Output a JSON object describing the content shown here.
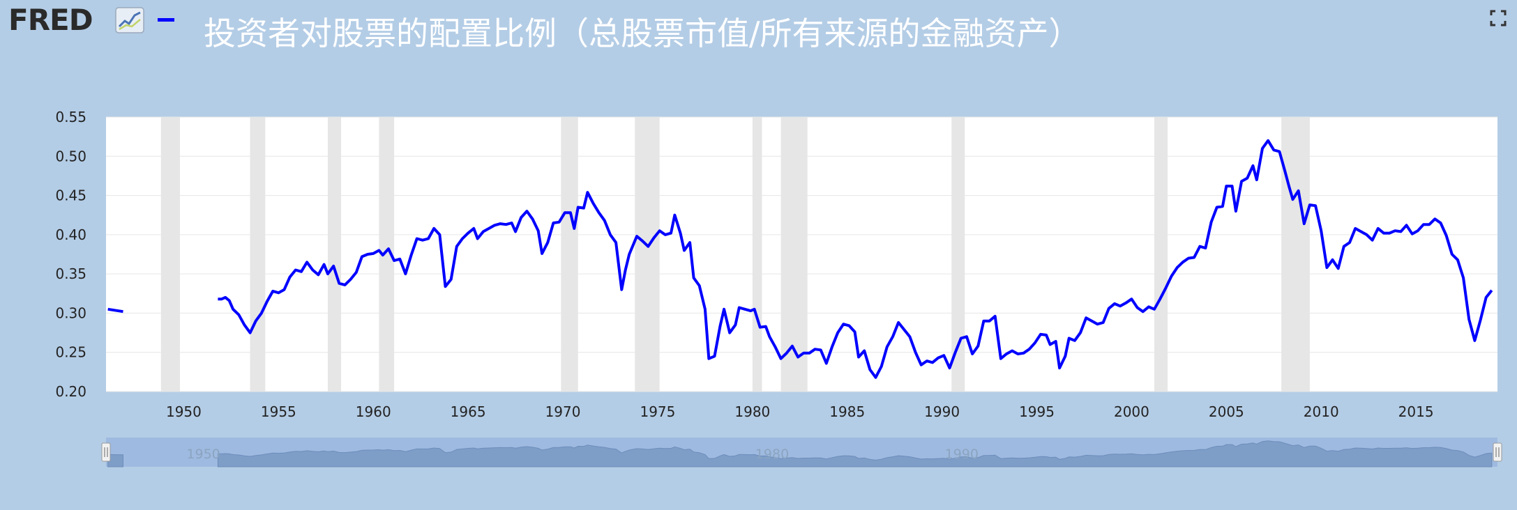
{
  "header": {
    "logo_text": "FRED",
    "logo_icon": "line-chart-icon",
    "series_color": "#0000ff",
    "title": "投资者对股票的配置比例（总股票市值/所有来源的金融资产）",
    "fullscreen_icon": "fullscreen-icon"
  },
  "colors": {
    "background": "#b4cde6",
    "plot_background": "#ffffff",
    "line": "#0000ff",
    "recession": "#e6e6e6",
    "navigator_fill": "#7e9ec8",
    "navigator_window": "#9fbae0"
  },
  "chart_data": {
    "type": "line",
    "title": "投资者对股票的配置比例（总股票市值/所有来源的金融资产）",
    "xlabel": "",
    "ylabel": "",
    "xlim": [
      1945.9,
      2019.3
    ],
    "ylim": [
      0.2,
      0.55
    ],
    "y_ticks": [
      0.2,
      0.25,
      0.3,
      0.35,
      0.4,
      0.45,
      0.5,
      0.55
    ],
    "y_tick_labels": [
      "0.20",
      "0.25",
      "0.30",
      "0.35",
      "0.40",
      "0.45",
      "0.50",
      "0.55"
    ],
    "x_ticks": [
      1950,
      1955,
      1960,
      1965,
      1970,
      1975,
      1980,
      1985,
      1990,
      1995,
      2000,
      2005,
      2010,
      2015
    ],
    "x_tick_labels": [
      "1950",
      "1955",
      "1960",
      "1965",
      "1970",
      "1975",
      "1980",
      "1985",
      "1990",
      "1995",
      "2000",
      "2005",
      "2010",
      "2015"
    ],
    "grid": true,
    "legend": "none",
    "recessions": [
      [
        1948.8,
        1949.8
      ],
      [
        1953.5,
        1954.3
      ],
      [
        1957.6,
        1958.3
      ],
      [
        1960.3,
        1961.1
      ],
      [
        1969.9,
        1970.8
      ],
      [
        1973.8,
        1975.1
      ],
      [
        1980.0,
        1980.5
      ],
      [
        1981.5,
        1982.9
      ],
      [
        1990.5,
        1991.2
      ],
      [
        2001.2,
        2001.9
      ],
      [
        2007.9,
        2009.4
      ]
    ],
    "series": [
      {
        "values": [
          [
            [
              1946.0,
              0.305
            ],
            [
              1946.8,
              0.302
            ]
          ],
          [
            [
              1951.8,
              0.318
            ],
            [
              1952.0,
              0.318
            ],
            [
              1952.2,
              0.32
            ],
            [
              1952.4,
              0.316
            ],
            [
              1952.6,
              0.305
            ],
            [
              1952.9,
              0.298
            ],
            [
              1953.2,
              0.285
            ],
            [
              1953.5,
              0.275
            ],
            [
              1953.8,
              0.29
            ],
            [
              1954.1,
              0.3
            ],
            [
              1954.4,
              0.315
            ],
            [
              1954.7,
              0.328
            ],
            [
              1955.0,
              0.326
            ],
            [
              1955.3,
              0.33
            ],
            [
              1955.6,
              0.346
            ],
            [
              1955.9,
              0.355
            ],
            [
              1956.2,
              0.353
            ],
            [
              1956.5,
              0.365
            ],
            [
              1956.8,
              0.355
            ],
            [
              1957.1,
              0.349
            ],
            [
              1957.4,
              0.362
            ],
            [
              1957.6,
              0.35
            ],
            [
              1957.9,
              0.36
            ],
            [
              1958.2,
              0.338
            ],
            [
              1958.5,
              0.336
            ],
            [
              1958.8,
              0.343
            ],
            [
              1959.1,
              0.352
            ],
            [
              1959.4,
              0.372
            ],
            [
              1959.7,
              0.375
            ],
            [
              1960.0,
              0.376
            ],
            [
              1960.3,
              0.38
            ],
            [
              1960.5,
              0.374
            ],
            [
              1960.8,
              0.382
            ],
            [
              1961.1,
              0.367
            ],
            [
              1961.4,
              0.369
            ],
            [
              1961.7,
              0.35
            ],
            [
              1962.0,
              0.374
            ],
            [
              1962.3,
              0.395
            ],
            [
              1962.6,
              0.393
            ],
            [
              1962.9,
              0.395
            ],
            [
              1963.2,
              0.408
            ],
            [
              1963.5,
              0.4
            ],
            [
              1963.8,
              0.334
            ],
            [
              1964.1,
              0.343
            ],
            [
              1964.4,
              0.385
            ],
            [
              1964.7,
              0.395
            ],
            [
              1965.0,
              0.402
            ],
            [
              1965.3,
              0.408
            ],
            [
              1965.5,
              0.395
            ],
            [
              1965.8,
              0.404
            ],
            [
              1966.1,
              0.408
            ],
            [
              1966.4,
              0.412
            ],
            [
              1966.7,
              0.414
            ],
            [
              1967.0,
              0.413
            ],
            [
              1967.3,
              0.415
            ],
            [
              1967.5,
              0.404
            ],
            [
              1967.8,
              0.422
            ],
            [
              1968.1,
              0.43
            ],
            [
              1968.4,
              0.42
            ],
            [
              1968.7,
              0.405
            ],
            [
              1968.9,
              0.376
            ],
            [
              1969.2,
              0.39
            ],
            [
              1969.5,
              0.415
            ],
            [
              1969.8,
              0.416
            ],
            [
              1970.1,
              0.428
            ],
            [
              1970.4,
              0.428
            ],
            [
              1970.6,
              0.408
            ],
            [
              1970.8,
              0.435
            ],
            [
              1971.1,
              0.434
            ],
            [
              1971.3,
              0.454
            ],
            [
              1971.6,
              0.44
            ],
            [
              1971.9,
              0.428
            ],
            [
              1972.2,
              0.418
            ],
            [
              1972.5,
              0.4
            ],
            [
              1972.8,
              0.39
            ],
            [
              1973.1,
              0.33
            ],
            [
              1973.3,
              0.355
            ],
            [
              1973.5,
              0.375
            ],
            [
              1973.9,
              0.398
            ],
            [
              1974.2,
              0.392
            ],
            [
              1974.5,
              0.385
            ],
            [
              1974.8,
              0.396
            ],
            [
              1975.1,
              0.405
            ],
            [
              1975.4,
              0.4
            ],
            [
              1975.7,
              0.402
            ],
            [
              1975.9,
              0.425
            ],
            [
              1976.2,
              0.402
            ],
            [
              1976.4,
              0.38
            ],
            [
              1976.7,
              0.39
            ],
            [
              1976.9,
              0.345
            ],
            [
              1977.2,
              0.335
            ],
            [
              1977.5,
              0.305
            ],
            [
              1977.7,
              0.242
            ],
            [
              1978.0,
              0.245
            ],
            [
              1978.3,
              0.284
            ],
            [
              1978.5,
              0.305
            ],
            [
              1978.8,
              0.275
            ],
            [
              1979.1,
              0.285
            ],
            [
              1979.3,
              0.307
            ],
            [
              1979.6,
              0.305
            ],
            [
              1979.9,
              0.303
            ],
            [
              1980.1,
              0.305
            ],
            [
              1980.4,
              0.282
            ],
            [
              1980.7,
              0.283
            ],
            [
              1980.9,
              0.27
            ],
            [
              1981.2,
              0.257
            ],
            [
              1981.5,
              0.242
            ],
            [
              1981.8,
              0.249
            ],
            [
              1982.1,
              0.258
            ],
            [
              1982.4,
              0.244
            ],
            [
              1982.7,
              0.249
            ],
            [
              1983.0,
              0.249
            ],
            [
              1983.3,
              0.254
            ],
            [
              1983.6,
              0.253
            ],
            [
              1983.9,
              0.236
            ],
            [
              1984.2,
              0.257
            ],
            [
              1984.5,
              0.275
            ],
            [
              1984.8,
              0.286
            ],
            [
              1985.1,
              0.284
            ],
            [
              1985.4,
              0.276
            ],
            [
              1985.6,
              0.244
            ],
            [
              1985.9,
              0.252
            ],
            [
              1986.2,
              0.228
            ],
            [
              1986.5,
              0.218
            ],
            [
              1986.8,
              0.232
            ],
            [
              1987.1,
              0.257
            ],
            [
              1987.4,
              0.27
            ],
            [
              1987.7,
              0.288
            ],
            [
              1988.0,
              0.279
            ],
            [
              1988.3,
              0.27
            ],
            [
              1988.6,
              0.25
            ],
            [
              1988.9,
              0.234
            ],
            [
              1989.2,
              0.239
            ],
            [
              1989.5,
              0.237
            ],
            [
              1989.8,
              0.243
            ],
            [
              1990.1,
              0.246
            ],
            [
              1990.4,
              0.23
            ],
            [
              1990.7,
              0.25
            ],
            [
              1991.0,
              0.268
            ],
            [
              1991.3,
              0.27
            ],
            [
              1991.6,
              0.248
            ],
            [
              1991.9,
              0.258
            ],
            [
              1992.2,
              0.29
            ],
            [
              1992.5,
              0.29
            ],
            [
              1992.8,
              0.296
            ],
            [
              1993.1,
              0.242
            ],
            [
              1993.4,
              0.248
            ],
            [
              1993.7,
              0.252
            ],
            [
              1994.0,
              0.248
            ],
            [
              1994.3,
              0.249
            ],
            [
              1994.6,
              0.254
            ],
            [
              1994.9,
              0.262
            ],
            [
              1995.2,
              0.273
            ],
            [
              1995.5,
              0.272
            ],
            [
              1995.7,
              0.26
            ],
            [
              1996.0,
              0.264
            ],
            [
              1996.2,
              0.23
            ],
            [
              1996.5,
              0.245
            ],
            [
              1996.7,
              0.268
            ],
            [
              1997.0,
              0.265
            ],
            [
              1997.3,
              0.275
            ],
            [
              1997.6,
              0.294
            ],
            [
              1997.9,
              0.29
            ],
            [
              1998.2,
              0.286
            ],
            [
              1998.5,
              0.288
            ],
            [
              1998.8,
              0.306
            ],
            [
              1999.1,
              0.312
            ],
            [
              1999.4,
              0.309
            ],
            [
              1999.7,
              0.313
            ],
            [
              2000.0,
              0.318
            ],
            [
              2000.3,
              0.307
            ],
            [
              2000.6,
              0.302
            ],
            [
              2000.9,
              0.308
            ],
            [
              2001.2,
              0.305
            ],
            [
              2001.5,
              0.318
            ],
            [
              2001.8,
              0.332
            ],
            [
              2002.1,
              0.347
            ],
            [
              2002.4,
              0.358
            ],
            [
              2002.7,
              0.365
            ],
            [
              2003.0,
              0.37
            ],
            [
              2003.3,
              0.371
            ],
            [
              2003.6,
              0.385
            ],
            [
              2003.9,
              0.383
            ],
            [
              2004.2,
              0.416
            ],
            [
              2004.5,
              0.435
            ],
            [
              2004.8,
              0.436
            ],
            [
              2005.0,
              0.462
            ],
            [
              2005.3,
              0.462
            ],
            [
              2005.5,
              0.43
            ],
            [
              2005.8,
              0.468
            ],
            [
              2006.1,
              0.472
            ],
            [
              2006.4,
              0.488
            ],
            [
              2006.6,
              0.47
            ],
            [
              2006.9,
              0.51
            ],
            [
              2007.2,
              0.52
            ],
            [
              2007.5,
              0.508
            ],
            [
              2007.8,
              0.506
            ],
            [
              2008.1,
              0.48
            ],
            [
              2008.3,
              0.462
            ],
            [
              2008.5,
              0.445
            ],
            [
              2008.8,
              0.456
            ],
            [
              2009.1,
              0.414
            ],
            [
              2009.4,
              0.438
            ],
            [
              2009.7,
              0.437
            ],
            [
              2010.0,
              0.405
            ],
            [
              2010.3,
              0.358
            ],
            [
              2010.6,
              0.368
            ],
            [
              2010.9,
              0.357
            ],
            [
              2011.2,
              0.385
            ],
            [
              2011.5,
              0.39
            ],
            [
              2011.8,
              0.408
            ],
            [
              2012.1,
              0.404
            ],
            [
              2012.4,
              0.4
            ],
            [
              2012.7,
              0.393
            ],
            [
              2013.0,
              0.408
            ],
            [
              2013.3,
              0.402
            ],
            [
              2013.6,
              0.402
            ],
            [
              2013.9,
              0.405
            ],
            [
              2014.2,
              0.404
            ],
            [
              2014.5,
              0.412
            ],
            [
              2014.8,
              0.401
            ],
            [
              2015.1,
              0.405
            ],
            [
              2015.4,
              0.413
            ],
            [
              2015.7,
              0.413
            ],
            [
              2016.0,
              0.42
            ],
            [
              2016.3,
              0.415
            ],
            [
              2016.6,
              0.399
            ],
            [
              2016.9,
              0.375
            ],
            [
              2017.2,
              0.368
            ],
            [
              2017.5,
              0.345
            ],
            [
              2017.8,
              0.292
            ],
            [
              2018.1,
              0.265
            ],
            [
              2018.4,
              0.291
            ],
            [
              2018.7,
              0.32
            ],
            [
              2019.0,
              0.329
            ]
          ]
        ]
      }
    ]
  },
  "navigator": {
    "labels": [
      "1950",
      "1980",
      "1990"
    ],
    "left_handle": "drag-handle-icon",
    "right_handle": "drag-handle-icon"
  }
}
